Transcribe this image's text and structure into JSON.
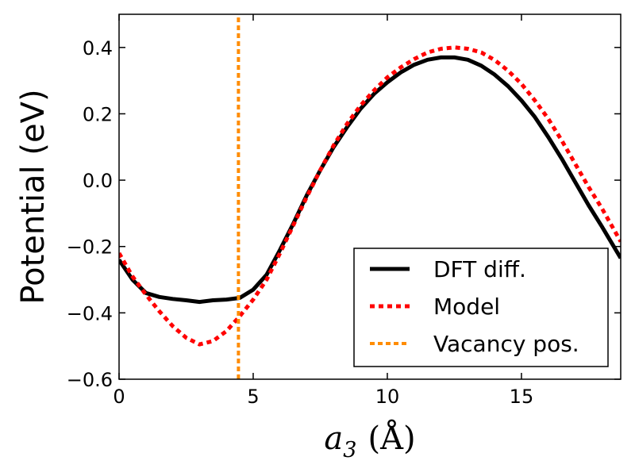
{
  "chart_data": {
    "type": "line",
    "xlabel": {
      "var": "a",
      "sub": "3",
      "unit": "(Å)"
    },
    "ylabel": "Potential (eV)",
    "xlim": [
      0,
      18.7
    ],
    "ylim": [
      -0.6,
      0.5
    ],
    "xticks": [
      0,
      5,
      10,
      15
    ],
    "xtick_labels": [
      "0",
      "5",
      "10",
      "15"
    ],
    "yticks": [
      -0.6,
      -0.4,
      -0.2,
      0.0,
      0.2,
      0.4
    ],
    "ytick_labels": [
      "−0.6",
      "−0.4",
      "−0.2",
      "0.0",
      "0.2",
      "0.4"
    ],
    "grid": false,
    "legend_position": "bottom-right",
    "series": [
      {
        "name": "DFT diff.",
        "color": "#000000",
        "style": "solid",
        "x": [
          0,
          0.5,
          1,
          1.5,
          2,
          2.5,
          3,
          3.5,
          4,
          4.5,
          5,
          5.5,
          6,
          6.5,
          7,
          7.5,
          8,
          8.5,
          9,
          9.5,
          10,
          10.5,
          11,
          11.5,
          12,
          12.5,
          13,
          13.5,
          14,
          14.5,
          15,
          15.5,
          16,
          16.5,
          17,
          17.5,
          18,
          18.7
        ],
        "y": [
          -0.24,
          -0.3,
          -0.34,
          -0.352,
          -0.358,
          -0.362,
          -0.367,
          -0.362,
          -0.36,
          -0.355,
          -0.33,
          -0.285,
          -0.21,
          -0.13,
          -0.045,
          0.03,
          0.1,
          0.16,
          0.215,
          0.26,
          0.295,
          0.325,
          0.348,
          0.363,
          0.37,
          0.37,
          0.363,
          0.345,
          0.318,
          0.283,
          0.24,
          0.19,
          0.13,
          0.065,
          -0.005,
          -0.075,
          -0.14,
          -0.235
        ]
      },
      {
        "name": "Model",
        "color": "#ff0000",
        "style": "dashed",
        "x": [
          0,
          0.5,
          1,
          1.5,
          2,
          2.5,
          3,
          3.5,
          4,
          4.5,
          5,
          5.5,
          6,
          6.5,
          7,
          7.5,
          8,
          8.5,
          9,
          9.5,
          10,
          10.5,
          11,
          11.5,
          12,
          12.5,
          13,
          13.5,
          14,
          14.5,
          15,
          15.5,
          16,
          16.5,
          17,
          17.5,
          18,
          18.7
        ],
        "y": [
          -0.22,
          -0.29,
          -0.345,
          -0.395,
          -0.44,
          -0.475,
          -0.495,
          -0.485,
          -0.455,
          -0.41,
          -0.36,
          -0.3,
          -0.22,
          -0.135,
          -0.05,
          0.03,
          0.105,
          0.17,
          0.225,
          0.27,
          0.31,
          0.34,
          0.365,
          0.385,
          0.396,
          0.4,
          0.396,
          0.385,
          0.362,
          0.33,
          0.29,
          0.24,
          0.185,
          0.12,
          0.05,
          -0.02,
          -0.085,
          -0.185
        ]
      },
      {
        "name": "Vacancy pos.",
        "color": "#ff8c00",
        "style": "dashed",
        "x": [
          4.45,
          4.45
        ],
        "y": [
          -0.6,
          0.5
        ]
      }
    ]
  }
}
